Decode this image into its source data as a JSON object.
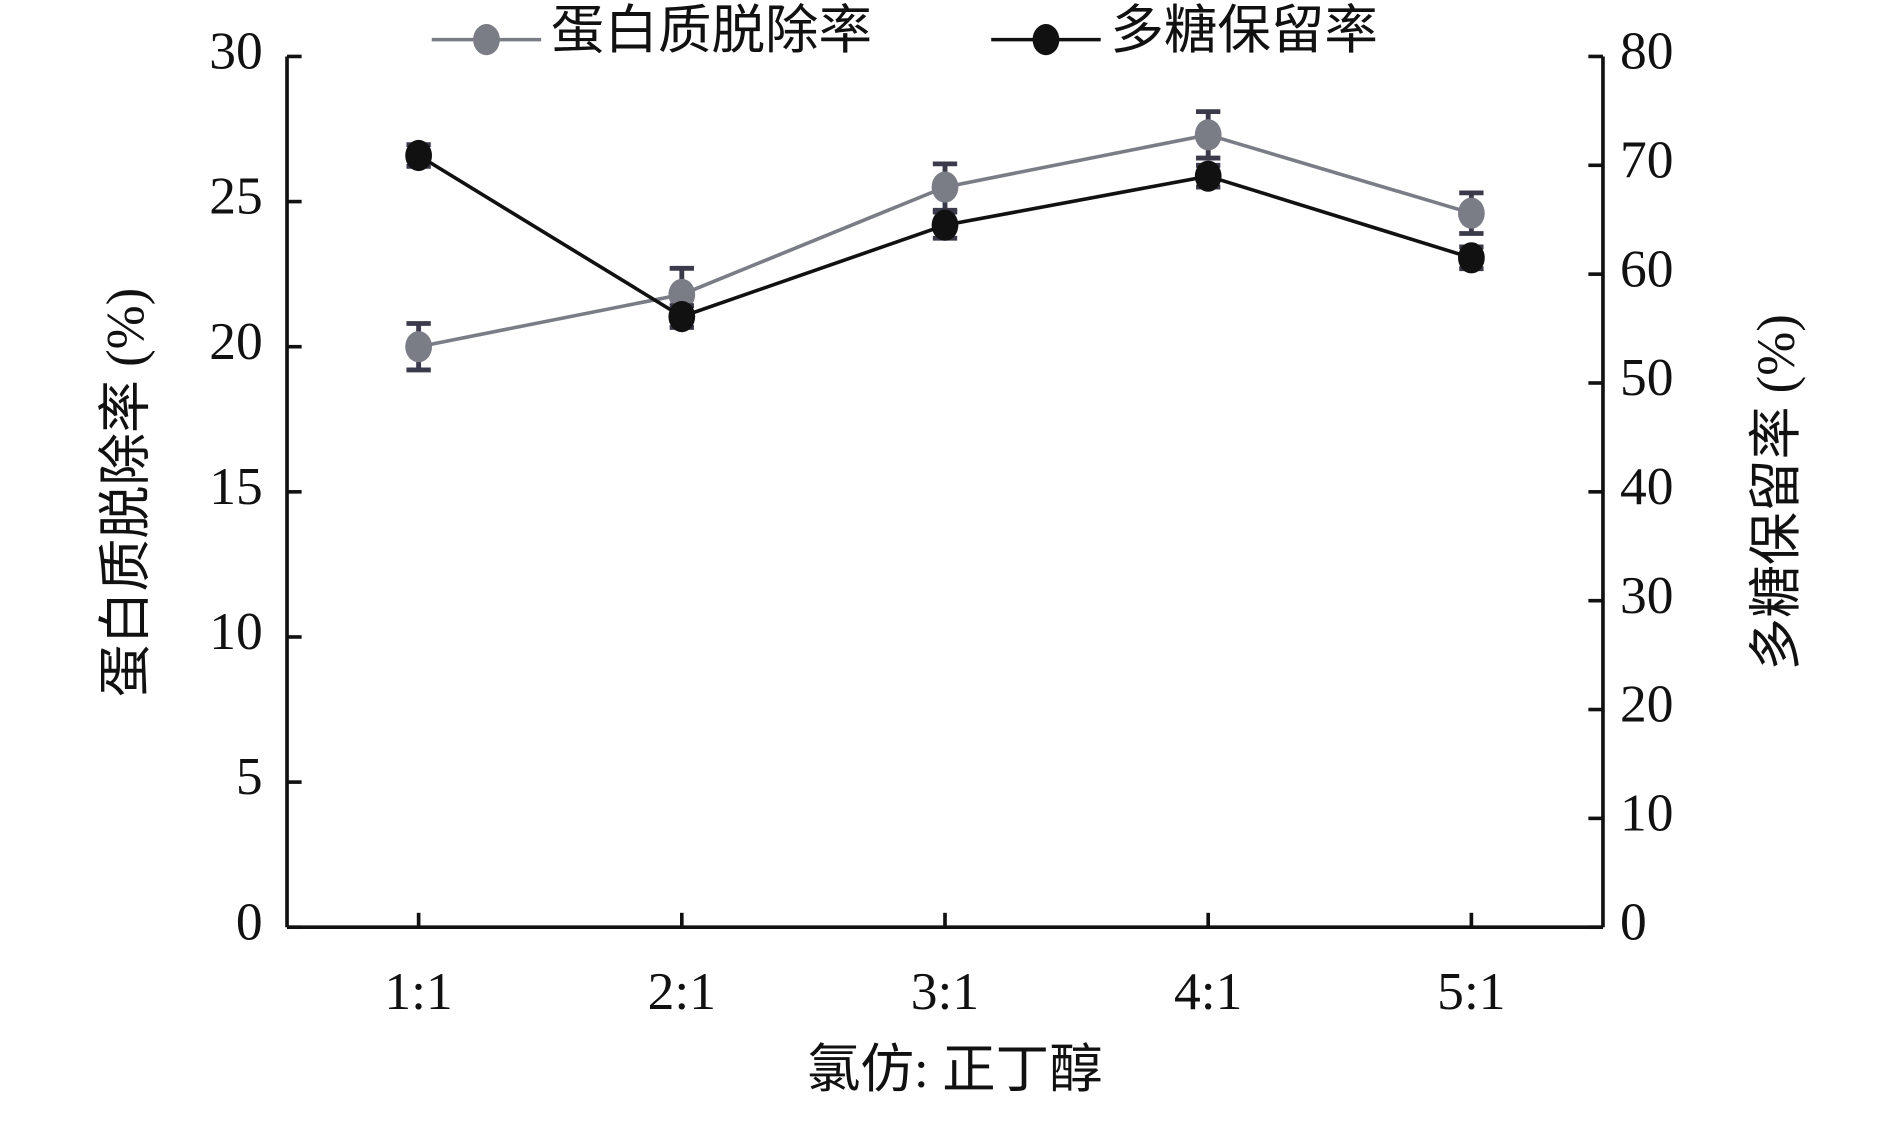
{
  "chart_data": {
    "type": "line",
    "x_label": "氯仿: 正丁醇",
    "y_label": "蛋白质脱除率 (%)",
    "y2_label": "多糖保留率 (%)",
    "categories": [
      "1:1",
      "2:1",
      "3:1",
      "4:1",
      "5:1"
    ],
    "ylim": [
      0,
      30
    ],
    "yticks": [
      0,
      5,
      10,
      15,
      20,
      25,
      30
    ],
    "y2lim": [
      0,
      80
    ],
    "y2ticks": [
      0,
      10,
      20,
      30,
      40,
      50,
      60,
      70,
      80
    ],
    "series": [
      {
        "name": "蛋白质脱除率",
        "color": "#7a7d86",
        "values": [
          20.0,
          21.8,
          25.5,
          27.3,
          24.6
        ],
        "errors": [
          0.8,
          0.9,
          0.8,
          0.8,
          0.7
        ]
      },
      {
        "name": "多糖保留率",
        "color": "#111111",
        "axis": "y2",
        "values": [
          70.9,
          56.1,
          64.5,
          69.0,
          61.5
        ],
        "errors": [
          1.0,
          1.0,
          1.2,
          1.0,
          1.0
        ]
      }
    ]
  }
}
